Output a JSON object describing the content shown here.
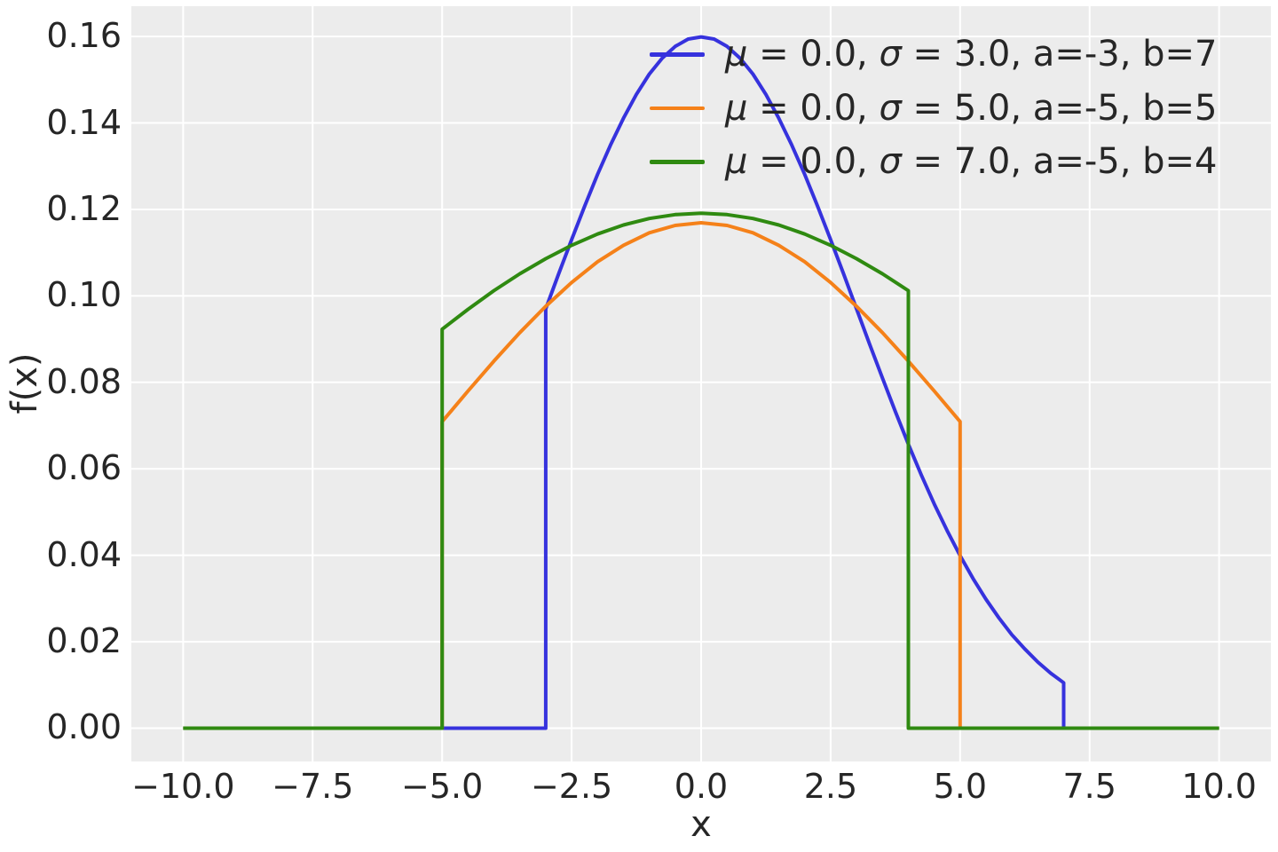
{
  "figure": {
    "background": "#ffffff",
    "plot_background": "#ececec",
    "gridline_color": "#ffffff",
    "text_color": "#262626"
  },
  "chart_data": {
    "type": "line",
    "title": "",
    "xlabel": "x",
    "ylabel": "f(x)",
    "xlim": [
      -11,
      11
    ],
    "ylim": [
      -0.0077,
      0.167
    ],
    "grid": true,
    "legend_position": "upper right",
    "legend_frame": false,
    "xticks": {
      "values": [
        -10,
        -7.5,
        -5,
        -2.5,
        0,
        2.5,
        5,
        7.5,
        10
      ],
      "labels": [
        "−10.0",
        "−7.5",
        "−5.0",
        "−2.5",
        "0.0",
        "2.5",
        "5.0",
        "7.5",
        "10.0"
      ]
    },
    "yticks": {
      "values": [
        0.0,
        0.02,
        0.04,
        0.06,
        0.08,
        0.1,
        0.12,
        0.14,
        0.16
      ],
      "labels": [
        "0.00",
        "0.02",
        "0.04",
        "0.06",
        "0.08",
        "0.10",
        "0.12",
        "0.14",
        "0.16"
      ]
    },
    "series": [
      {
        "name": "truncnorm-sigma-3",
        "label": "μ = 0.0, σ = 3.0, a=-3, b=7",
        "color": "#3632dd",
        "mu": 0.0,
        "sigma": 3.0,
        "a": -3,
        "b": 7,
        "peak": 0.1599,
        "points": [
          [
            -10,
            0
          ],
          [
            -3,
            0
          ],
          [
            -3,
            0.097
          ],
          [
            -2.75,
            0.1051
          ],
          [
            -2.5,
            0.113
          ],
          [
            -2.25,
            0.1207
          ],
          [
            -2,
            0.1281
          ],
          [
            -1.75,
            0.1349
          ],
          [
            -1.5,
            0.1411
          ],
          [
            -1.25,
            0.1466
          ],
          [
            -1,
            0.1513
          ],
          [
            -0.75,
            0.155
          ],
          [
            -0.5,
            0.1577
          ],
          [
            -0.25,
            0.1594
          ],
          [
            0,
            0.1599
          ],
          [
            0.25,
            0.1594
          ],
          [
            0.5,
            0.1577
          ],
          [
            0.75,
            0.155
          ],
          [
            1,
            0.1513
          ],
          [
            1.25,
            0.1466
          ],
          [
            1.5,
            0.1411
          ],
          [
            1.75,
            0.1349
          ],
          [
            2,
            0.1281
          ],
          [
            2.25,
            0.1207
          ],
          [
            2.5,
            0.113
          ],
          [
            2.75,
            0.1051
          ],
          [
            3,
            0.097
          ],
          [
            3.25,
            0.0889
          ],
          [
            3.5,
            0.081
          ],
          [
            3.75,
            0.0732
          ],
          [
            4,
            0.0657
          ],
          [
            4.25,
            0.0586
          ],
          [
            4.5,
            0.0519
          ],
          [
            4.75,
            0.0457
          ],
          [
            5,
            0.0399
          ],
          [
            5.25,
            0.0346
          ],
          [
            5.5,
            0.0298
          ],
          [
            5.75,
            0.0255
          ],
          [
            6,
            0.0216
          ],
          [
            6.25,
            0.0183
          ],
          [
            6.5,
            0.0153
          ],
          [
            6.75,
            0.0127
          ],
          [
            7,
            0.0105
          ],
          [
            7,
            0
          ],
          [
            10,
            0
          ]
        ]
      },
      {
        "name": "truncnorm-sigma-5",
        "label": "μ = 0.0, σ = 5.0, a=-5, b=5",
        "color": "#f58119",
        "mu": 0.0,
        "sigma": 5.0,
        "a": -5,
        "b": 5,
        "peak": 0.1169,
        "points": [
          [
            -10,
            0
          ],
          [
            -5,
            0
          ],
          [
            -5,
            0.0709
          ],
          [
            -4.5,
            0.078
          ],
          [
            -4,
            0.0849
          ],
          [
            -3.5,
            0.0915
          ],
          [
            -3,
            0.0976
          ],
          [
            -2.5,
            0.1031
          ],
          [
            -2,
            0.1079
          ],
          [
            -1.5,
            0.1117
          ],
          [
            -1,
            0.1146
          ],
          [
            -0.5,
            0.1163
          ],
          [
            0,
            0.1169
          ],
          [
            0.5,
            0.1163
          ],
          [
            1,
            0.1146
          ],
          [
            1.5,
            0.1117
          ],
          [
            2,
            0.1079
          ],
          [
            2.5,
            0.1031
          ],
          [
            3,
            0.0976
          ],
          [
            3.5,
            0.0915
          ],
          [
            4,
            0.0849
          ],
          [
            4.5,
            0.078
          ],
          [
            5,
            0.0709
          ],
          [
            5,
            0
          ],
          [
            10,
            0
          ]
        ]
      },
      {
        "name": "truncnorm-sigma-7",
        "label": "μ = 0.0, σ = 7.0, a=-5, b=4",
        "color": "#2f8a11",
        "mu": 0.0,
        "sigma": 7.0,
        "a": -5,
        "b": 4,
        "peak": 0.1191,
        "points": [
          [
            -10,
            0
          ],
          [
            -5,
            0
          ],
          [
            -5,
            0.0923
          ],
          [
            -4.5,
            0.0969
          ],
          [
            -4,
            0.1012
          ],
          [
            -3.5,
            0.1051
          ],
          [
            -3,
            0.1086
          ],
          [
            -2.5,
            0.1117
          ],
          [
            -2,
            0.1143
          ],
          [
            -1.5,
            0.1164
          ],
          [
            -1,
            0.1179
          ],
          [
            -0.5,
            0.1188
          ],
          [
            0,
            0.1191
          ],
          [
            0.5,
            0.1188
          ],
          [
            1,
            0.1179
          ],
          [
            1.5,
            0.1164
          ],
          [
            2,
            0.1143
          ],
          [
            2.5,
            0.1117
          ],
          [
            3,
            0.1086
          ],
          [
            3.5,
            0.1051
          ],
          [
            4,
            0.1012
          ],
          [
            4,
            0
          ],
          [
            10,
            0
          ]
        ]
      }
    ]
  }
}
